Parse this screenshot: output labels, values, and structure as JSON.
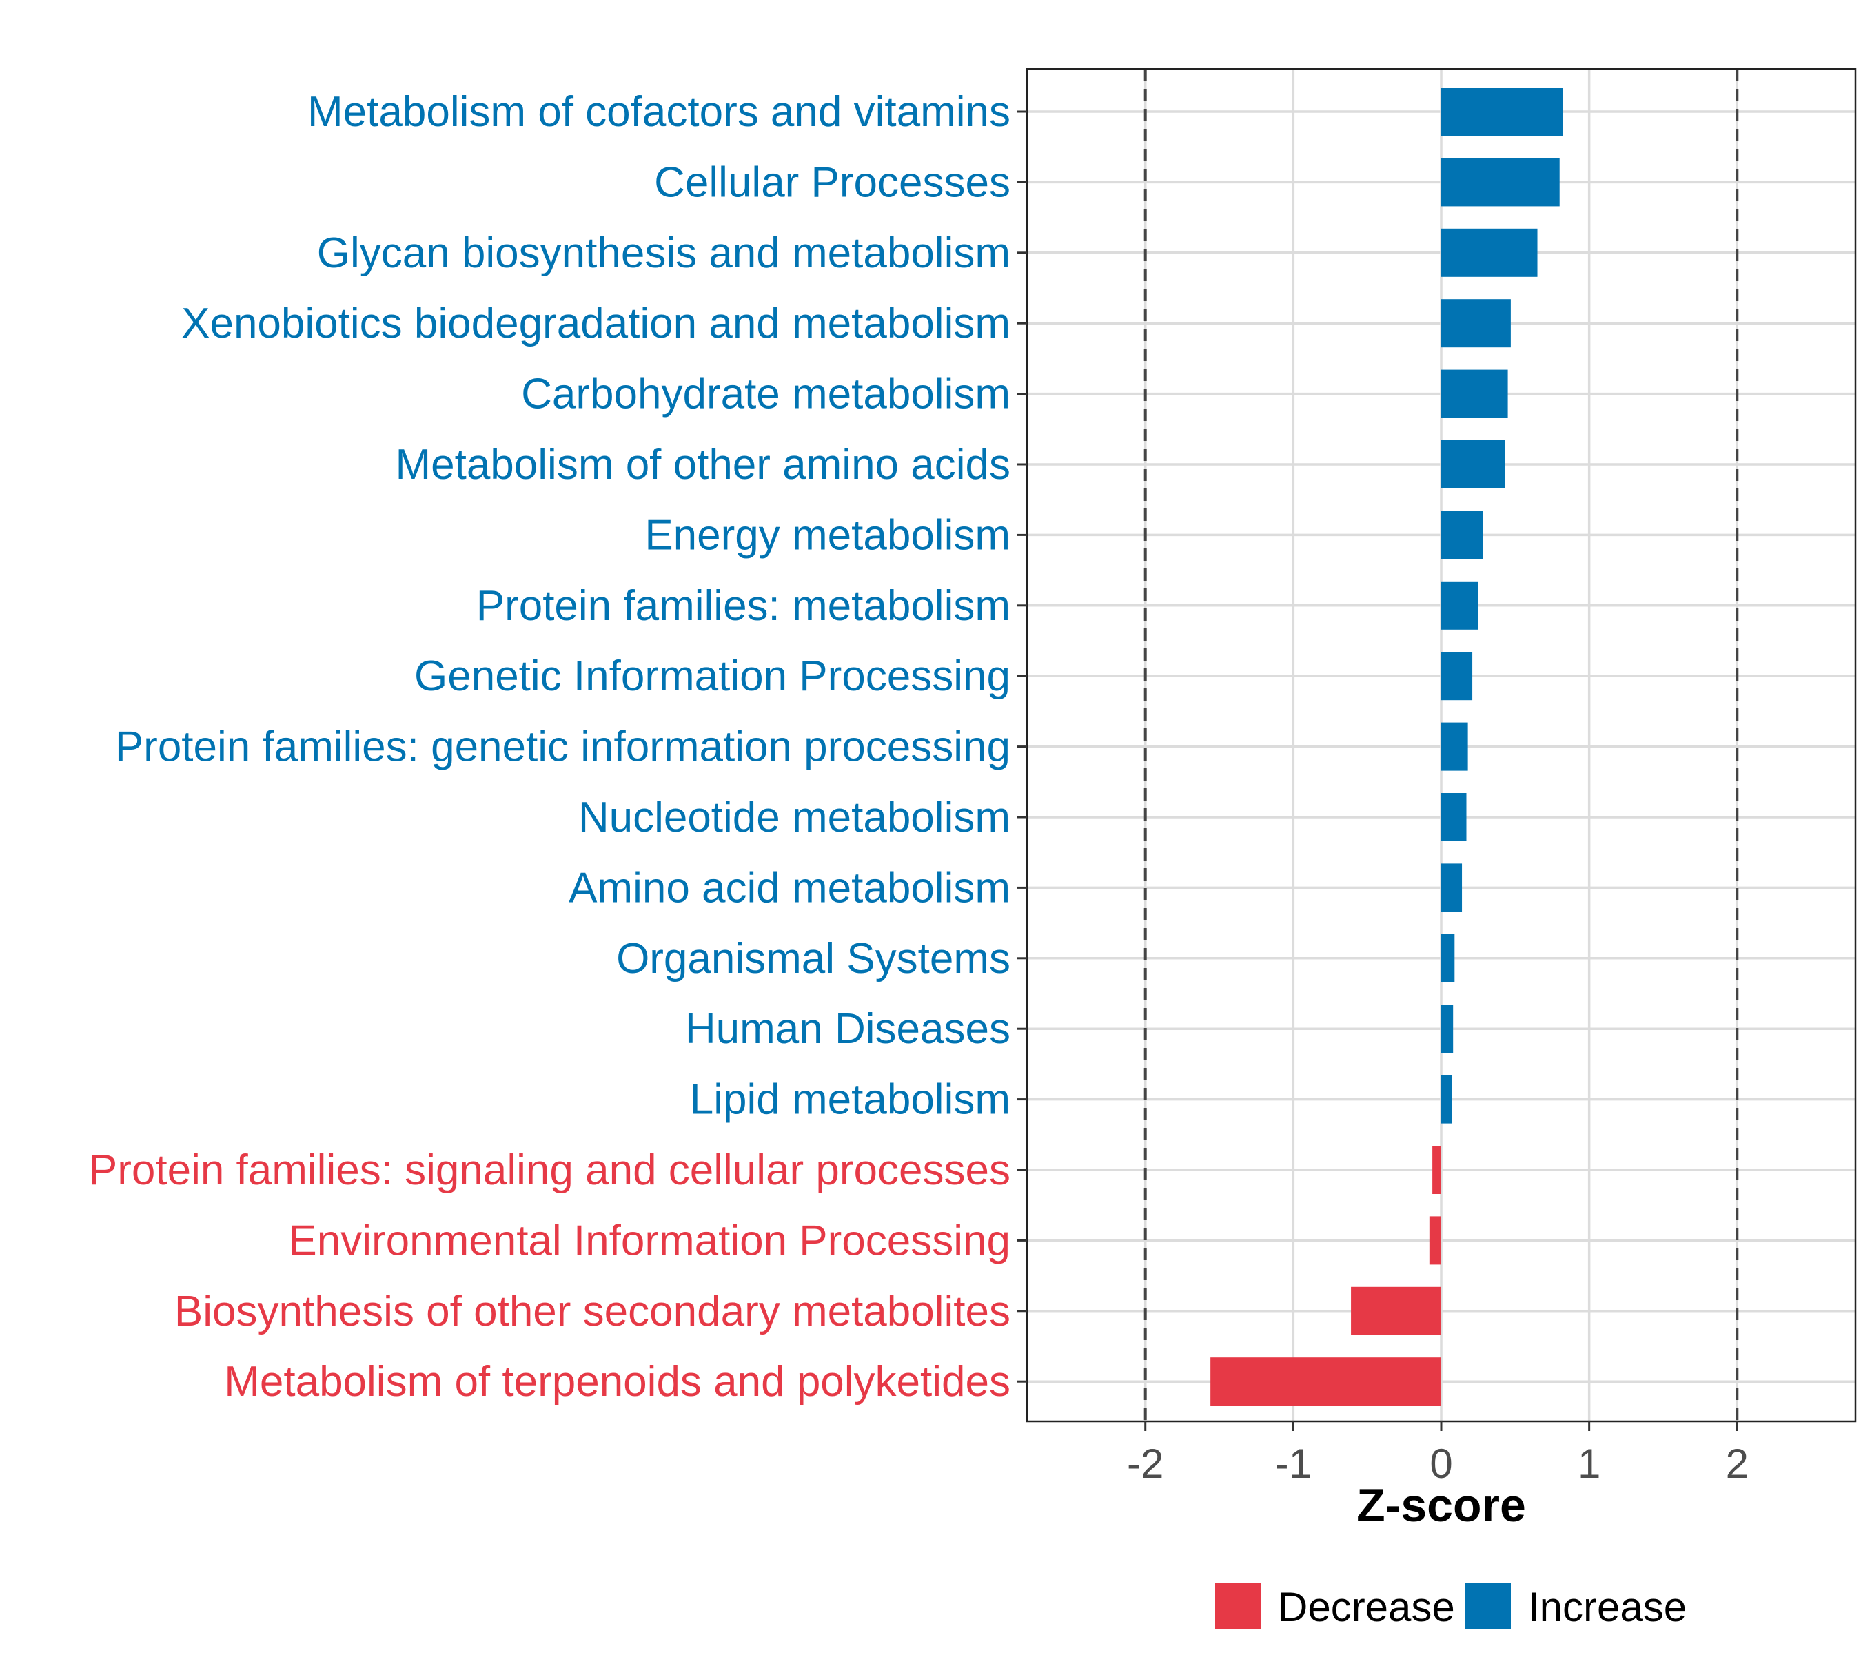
{
  "chart_data": {
    "type": "bar",
    "orientation": "horizontal",
    "xlabel": "Z-score",
    "ylabel": "",
    "xlim": [
      -2.8,
      2.8
    ],
    "x_ticks": [
      -2,
      -1,
      0,
      1,
      2
    ],
    "x_tick_labels": [
      "-2",
      "-1",
      "0",
      "1",
      "2"
    ],
    "reference_lines": [
      -2,
      2
    ],
    "grid": true,
    "legend": {
      "position": "bottom",
      "entries": [
        {
          "name": "Decrease",
          "color": "#E63946"
        },
        {
          "name": "Increase",
          "color": "#0173B2"
        }
      ]
    },
    "categories": [
      "Metabolism of cofactors and vitamins",
      "Cellular Processes",
      "Glycan biosynthesis and metabolism",
      "Xenobiotics biodegradation and metabolism",
      "Carbohydrate metabolism",
      "Metabolism of other amino acids",
      "Energy metabolism",
      "Protein families: metabolism",
      "Genetic Information Processing",
      "Protein families: genetic information processing",
      "Nucleotide metabolism",
      "Amino acid metabolism",
      "Organismal Systems",
      "Human Diseases",
      "Lipid metabolism",
      "Protein families: signaling and cellular processes",
      "Environmental Information Processing",
      "Biosynthesis of other secondary metabolites",
      "Metabolism of terpenoids and polyketides"
    ],
    "values": [
      0.82,
      0.8,
      0.65,
      0.47,
      0.45,
      0.43,
      0.28,
      0.25,
      0.21,
      0.18,
      0.17,
      0.14,
      0.09,
      0.08,
      0.07,
      -0.06,
      -0.08,
      -0.61,
      -1.56
    ],
    "groups": [
      "Increase",
      "Increase",
      "Increase",
      "Increase",
      "Increase",
      "Increase",
      "Increase",
      "Increase",
      "Increase",
      "Increase",
      "Increase",
      "Increase",
      "Increase",
      "Increase",
      "Increase",
      "Decrease",
      "Decrease",
      "Decrease",
      "Decrease"
    ]
  },
  "colors": {
    "Increase": "#0173B2",
    "Decrease": "#E63946"
  }
}
